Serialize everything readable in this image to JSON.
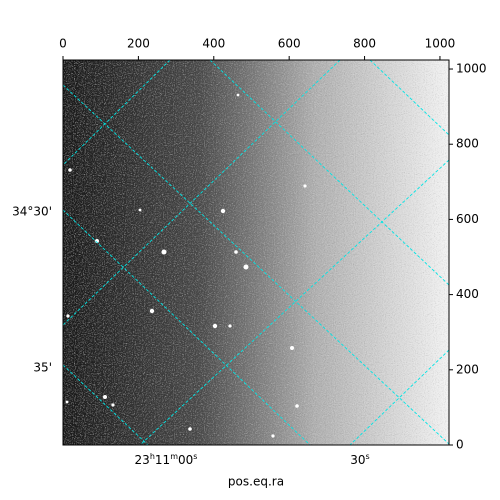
{
  "chart_data": {
    "type": "image",
    "x_label": "pos.eq.ra",
    "xlim": [
      0,
      1024
    ],
    "ylim": [
      0,
      1024
    ],
    "xticks": [
      0,
      200,
      400,
      600,
      800,
      1000
    ],
    "yticks": [
      0,
      200,
      400,
      600,
      800,
      1000
    ],
    "ra_tick_labels": [
      [
        "23",
        "h",
        "11",
        "m",
        "00",
        "s"
      ],
      [
        "30",
        "s"
      ]
    ],
    "dec_tick_labels": [
      "34°30'",
      "35'"
    ],
    "grid_color": "#00e5e5"
  }
}
